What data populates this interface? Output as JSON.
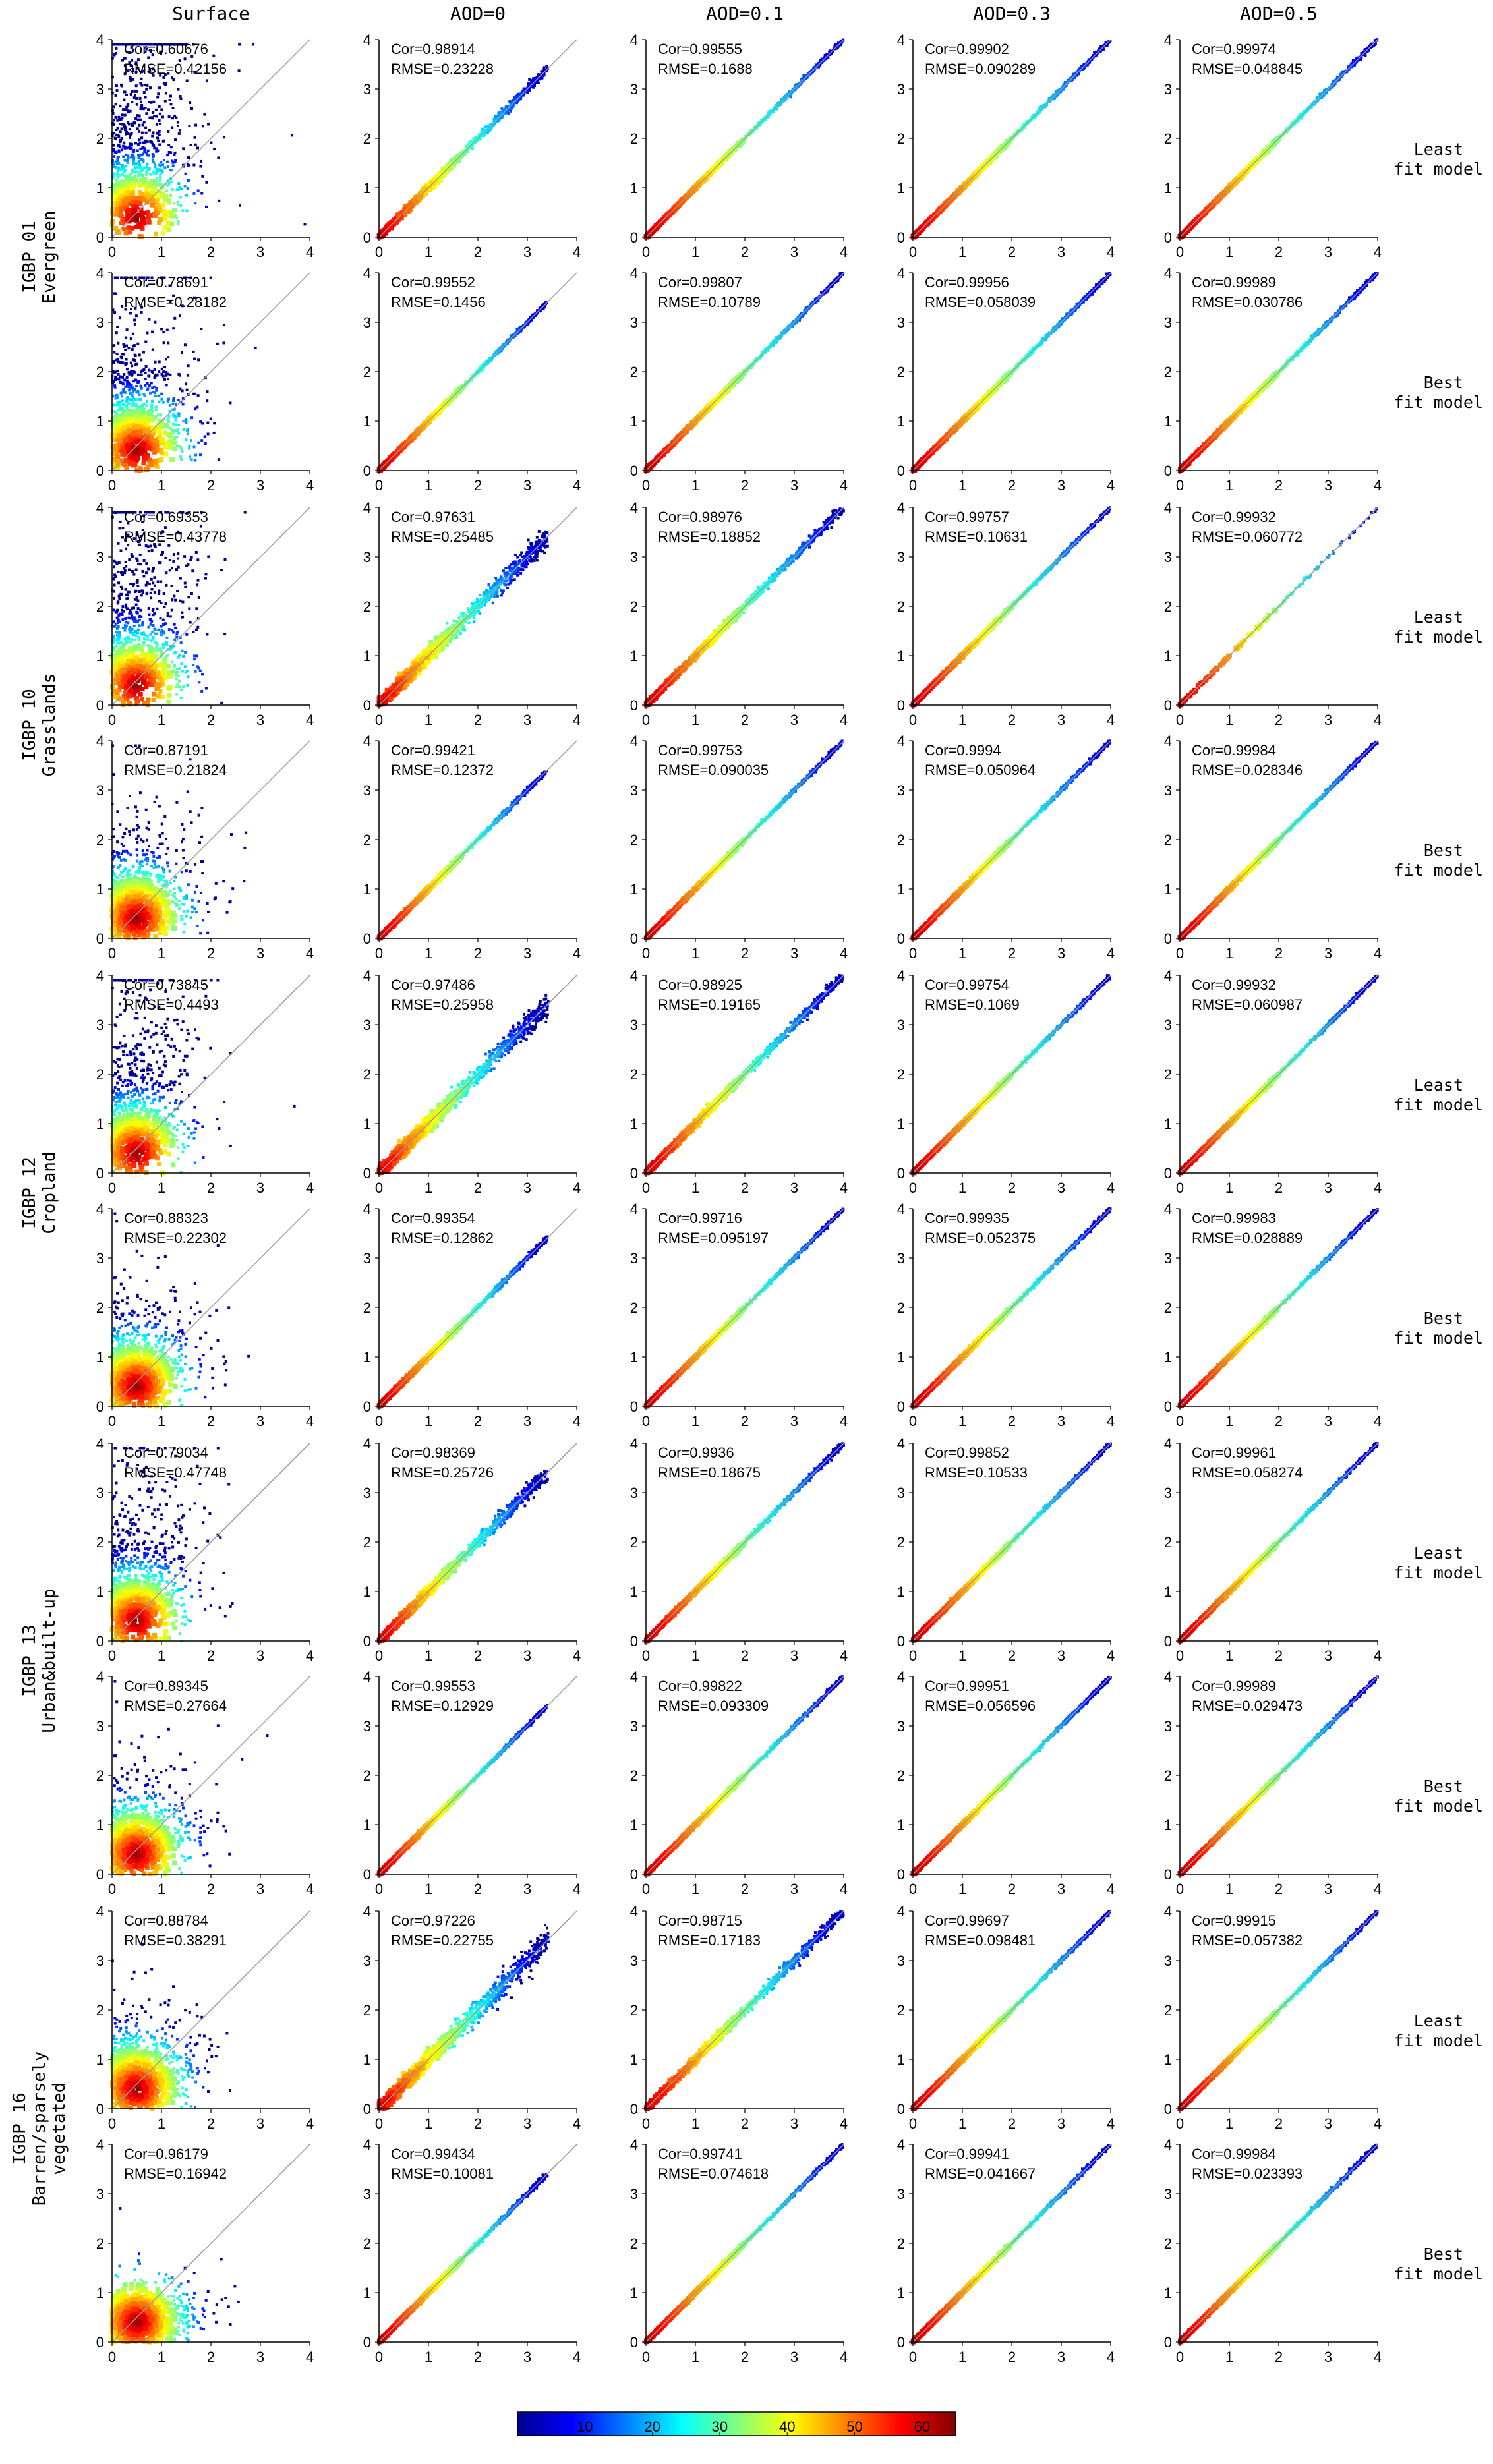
{
  "columns": [
    "Surface",
    "AOD=0",
    "AOD=0.1",
    "AOD=0.3",
    "AOD=0.5"
  ],
  "classes": [
    {
      "label_line1": "IGBP 01",
      "label_line2": "Evergreen",
      "label_line3": ""
    },
    {
      "label_line1": "IGBP 10",
      "label_line2": "Grasslands",
      "label_line3": ""
    },
    {
      "label_line1": "IGBP 12",
      "label_line2": "Cropland",
      "label_line3": ""
    },
    {
      "label_line1": "IGBP 13",
      "label_line2": "Urban&built-up",
      "label_line3": ""
    },
    {
      "label_line1": "IGBP 16",
      "label_line2": "Barren/sparsely",
      "label_line3": "vegetated"
    }
  ],
  "models": {
    "least": {
      "line1": "Least",
      "line2": "fit model"
    },
    "best": {
      "line1": "Best",
      "line2": "fit model"
    }
  },
  "colorbar": {
    "ticks": [
      10,
      20,
      30,
      40,
      50,
      60
    ],
    "range": [
      0,
      65
    ],
    "colors": [
      "#00008f",
      "#0000ff",
      "#0080ff",
      "#00ffff",
      "#80ff80",
      "#ffff00",
      "#ff8000",
      "#ff0000",
      "#800000"
    ]
  },
  "chart_data": {
    "type": "scatter",
    "subtype": "density-scatter grid (10 rows x 5 columns)",
    "xlim": [
      0,
      4
    ],
    "ylim": [
      0,
      4
    ],
    "xticks": [
      0,
      1,
      2,
      3,
      4
    ],
    "yticks": [
      0,
      1,
      2,
      3,
      4
    ],
    "reference_line": "y = x",
    "rows": [
      {
        "class": "IGBP 01",
        "model": "Least",
        "cor": [
          "0.60676",
          "0.98914",
          "0.99555",
          "0.99902",
          "0.99974"
        ],
        "rmse": [
          "0.42156",
          "0.23228",
          "0.1688",
          "0.090289",
          "0.048845"
        ]
      },
      {
        "class": "IGBP 01",
        "model": "Best",
        "cor": [
          "0.78691",
          "0.99552",
          "0.99807",
          "0.99956",
          "0.99989"
        ],
        "rmse": [
          "0.28182",
          "0.1456",
          "0.10789",
          "0.058039",
          "0.030786"
        ]
      },
      {
        "class": "IGBP 10",
        "model": "Least",
        "cor": [
          "0.69353",
          "0.97631",
          "0.98976",
          "0.99757",
          "0.99932"
        ],
        "rmse": [
          "0.43778",
          "0.25485",
          "0.18852",
          "0.10631",
          "0.060772"
        ]
      },
      {
        "class": "IGBP 10",
        "model": "Best",
        "cor": [
          "0.87191",
          "0.99421",
          "0.99753",
          "0.9994",
          "0.99984"
        ],
        "rmse": [
          "0.21824",
          "0.12372",
          "0.090035",
          "0.050964",
          "0.028346"
        ]
      },
      {
        "class": "IGBP 12",
        "model": "Least",
        "cor": [
          "0.73845",
          "0.97486",
          "0.98925",
          "0.99754",
          "0.99932"
        ],
        "rmse": [
          "0.4493",
          "0.25958",
          "0.19165",
          "0.1069",
          "0.060987"
        ]
      },
      {
        "class": "IGBP 12",
        "model": "Best",
        "cor": [
          "0.88323",
          "0.99354",
          "0.99716",
          "0.99935",
          "0.99983"
        ],
        "rmse": [
          "0.22302",
          "0.12862",
          "0.095197",
          "0.052375",
          "0.028889"
        ]
      },
      {
        "class": "IGBP 13",
        "model": "Least",
        "cor": [
          "0.79034",
          "0.98369",
          "0.9936",
          "0.99852",
          "0.99961"
        ],
        "rmse": [
          "0.47748",
          "0.25726",
          "0.18675",
          "0.10533",
          "0.058274"
        ]
      },
      {
        "class": "IGBP 13",
        "model": "Best",
        "cor": [
          "0.89345",
          "0.99553",
          "0.99822",
          "0.99951",
          "0.99989"
        ],
        "rmse": [
          "0.27664",
          "0.12929",
          "0.093309",
          "0.056596",
          "0.029473"
        ]
      },
      {
        "class": "IGBP 16",
        "model": "Least",
        "cor": [
          "0.88784",
          "0.97226",
          "0.98715",
          "0.99697",
          "0.99915"
        ],
        "rmse": [
          "0.38291",
          "0.22755",
          "0.17183",
          "0.098481",
          "0.057382"
        ]
      },
      {
        "class": "IGBP 16",
        "model": "Best",
        "cor": [
          "0.96179",
          "0.99434",
          "0.99741",
          "0.99941",
          "0.99984"
        ],
        "rmse": [
          "0.16942",
          "0.10081",
          "0.074618",
          "0.041667",
          "0.023393"
        ]
      }
    ]
  }
}
